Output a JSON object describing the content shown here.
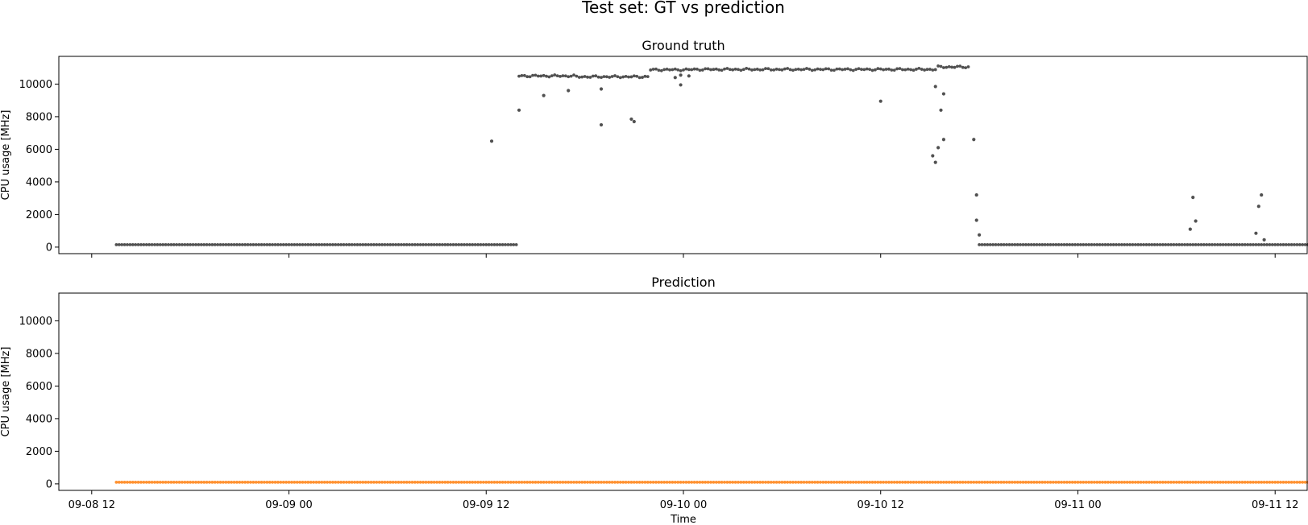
{
  "figure": {
    "title": "Test set: GT vs prediction"
  },
  "chart_data": [
    {
      "type": "scatter",
      "title": "Ground truth",
      "xlabel": "",
      "ylabel": "CPU usage [MHz]",
      "x_range": [
        "2025-09-08T10:00",
        "2025-09-11T14:00"
      ],
      "ylim": [
        -400,
        11700
      ],
      "yticks": [
        0,
        2000,
        4000,
        6000,
        8000,
        10000
      ],
      "xticks": [
        "09-08 12",
        "09-09 00",
        "09-09 12",
        "09-10 00",
        "09-10 12",
        "09-11 00",
        "09-11 12"
      ],
      "xtick_labels_visible": false,
      "color": "#333333",
      "x_start": "2025-09-08T13:30",
      "x_end": "2025-09-11T14:30",
      "sample_interval_minutes": 10,
      "segments": [
        {
          "from": "2025-09-08T13:30",
          "to": "2025-09-09T14:00",
          "y": 150
        },
        {
          "from": "2025-09-09T14:00",
          "to": "2025-09-09T17:30",
          "y": 10500
        },
        {
          "from": "2025-09-09T17:30",
          "to": "2025-09-09T22:00",
          "y": 10450
        },
        {
          "from": "2025-09-09T22:00",
          "to": "2025-09-10T00:30",
          "y": 10880
        },
        {
          "from": "2025-09-10T00:30",
          "to": "2025-09-10T15:30",
          "y": 10900
        },
        {
          "from": "2025-09-10T15:30",
          "to": "2025-09-10T17:30",
          "y": 11050
        },
        {
          "from": "2025-09-10T18:00",
          "to": "2025-09-11T14:30",
          "y": 150
        }
      ],
      "outliers": [
        {
          "x": "2025-09-09T12:20",
          "y": 6500
        },
        {
          "x": "2025-09-09T14:00",
          "y": 8400
        },
        {
          "x": "2025-09-09T15:30",
          "y": 9300
        },
        {
          "x": "2025-09-09T17:00",
          "y": 9600
        },
        {
          "x": "2025-09-09T19:00",
          "y": 7500
        },
        {
          "x": "2025-09-09T19:00",
          "y": 9700
        },
        {
          "x": "2025-09-09T20:50",
          "y": 7850
        },
        {
          "x": "2025-09-09T21:00",
          "y": 7700
        },
        {
          "x": "2025-09-09T23:30",
          "y": 10400
        },
        {
          "x": "2025-09-09T23:50",
          "y": 10550
        },
        {
          "x": "2025-09-09T23:50",
          "y": 9950
        },
        {
          "x": "2025-09-10T00:20",
          "y": 10500
        },
        {
          "x": "2025-09-10T12:00",
          "y": 8950
        },
        {
          "x": "2025-09-10T15:20",
          "y": 9850
        },
        {
          "x": "2025-09-10T15:10",
          "y": 5600
        },
        {
          "x": "2025-09-10T15:20",
          "y": 5200
        },
        {
          "x": "2025-09-10T15:30",
          "y": 6100
        },
        {
          "x": "2025-09-10T15:40",
          "y": 8400
        },
        {
          "x": "2025-09-10T15:50",
          "y": 9400
        },
        {
          "x": "2025-09-10T15:50",
          "y": 6600
        },
        {
          "x": "2025-09-10T17:40",
          "y": 6600
        },
        {
          "x": "2025-09-10T17:50",
          "y": 3200
        },
        {
          "x": "2025-09-10T17:50",
          "y": 1650
        },
        {
          "x": "2025-09-10T18:00",
          "y": 750
        },
        {
          "x": "2025-09-11T06:50",
          "y": 1100
        },
        {
          "x": "2025-09-11T07:00",
          "y": 3050
        },
        {
          "x": "2025-09-11T07:10",
          "y": 1600
        },
        {
          "x": "2025-09-11T10:50",
          "y": 850
        },
        {
          "x": "2025-09-11T11:00",
          "y": 2500
        },
        {
          "x": "2025-09-11T11:10",
          "y": 3200
        },
        {
          "x": "2025-09-11T11:20",
          "y": 450
        }
      ]
    },
    {
      "type": "scatter",
      "title": "Prediction",
      "xlabel": "Time",
      "ylabel": "CPU usage [MHz]",
      "x_range": [
        "2025-09-08T10:00",
        "2025-09-11T14:00"
      ],
      "ylim": [
        -400,
        11700
      ],
      "yticks": [
        0,
        2000,
        4000,
        6000,
        8000,
        10000
      ],
      "xticks": [
        "09-08 12",
        "09-09 00",
        "09-09 12",
        "09-10 00",
        "09-10 12",
        "09-11 00",
        "09-11 12"
      ],
      "xtick_labels_visible": true,
      "color": "#ff7f0e",
      "x_start": "2025-09-08T13:30",
      "x_end": "2025-09-11T14:30",
      "sample_interval_minutes": 10,
      "segments": [
        {
          "from": "2025-09-08T13:30",
          "to": "2025-09-11T14:30",
          "y": 100
        }
      ],
      "outliers": []
    }
  ]
}
